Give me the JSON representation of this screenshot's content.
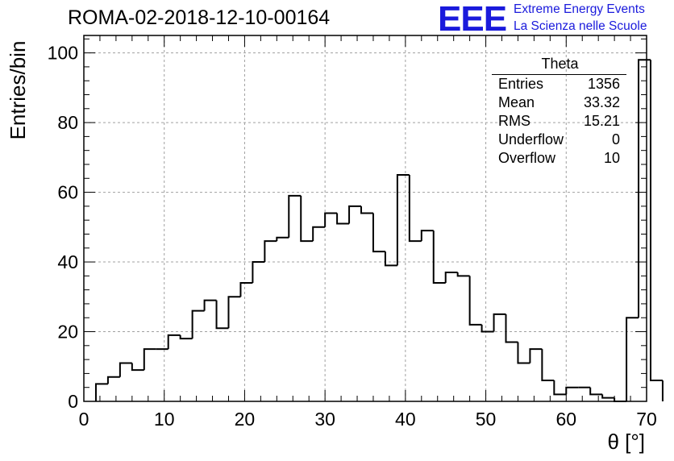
{
  "header": {
    "title": "ROMA-02-2018-12-10-00164",
    "logo_text": "EEE",
    "logo_line1": "Extreme Energy Events",
    "logo_line2": "La Scienza nelle Scuole"
  },
  "stats_box": {
    "name": "Theta",
    "rows": [
      {
        "label": "Entries",
        "value": "1356"
      },
      {
        "label": "Mean",
        "value": "33.32"
      },
      {
        "label": "RMS",
        "value": "15.21"
      },
      {
        "label": "Underflow",
        "value": "0"
      },
      {
        "label": "Overflow",
        "value": "10"
      }
    ]
  },
  "colors": {
    "histogram_line": "#000000",
    "grid": "#a0a0a0",
    "logo": "#1a1adc"
  },
  "chart_data": {
    "type": "bar",
    "style": "step-histogram",
    "xlabel": "θ [°]",
    "ylabel": "Entries/bin",
    "xlim": [
      0,
      70
    ],
    "ylim": [
      0,
      105
    ],
    "x_ticks": [
      0,
      10,
      20,
      30,
      40,
      50,
      60,
      70
    ],
    "y_ticks": [
      0,
      20,
      40,
      60,
      80,
      100
    ],
    "grid": true,
    "bin_width": 1.5,
    "bin_start": 1.5,
    "values": [
      5,
      7,
      11,
      9,
      15,
      15,
      19,
      18,
      26,
      29,
      21,
      30,
      34,
      40,
      46,
      47,
      59,
      46,
      50,
      54,
      51,
      56,
      54,
      43,
      39,
      65,
      46,
      49,
      34,
      37,
      36,
      22,
      20,
      25,
      17,
      11,
      15,
      6,
      2,
      4,
      4,
      2,
      1,
      0,
      24,
      98,
      6
    ]
  }
}
